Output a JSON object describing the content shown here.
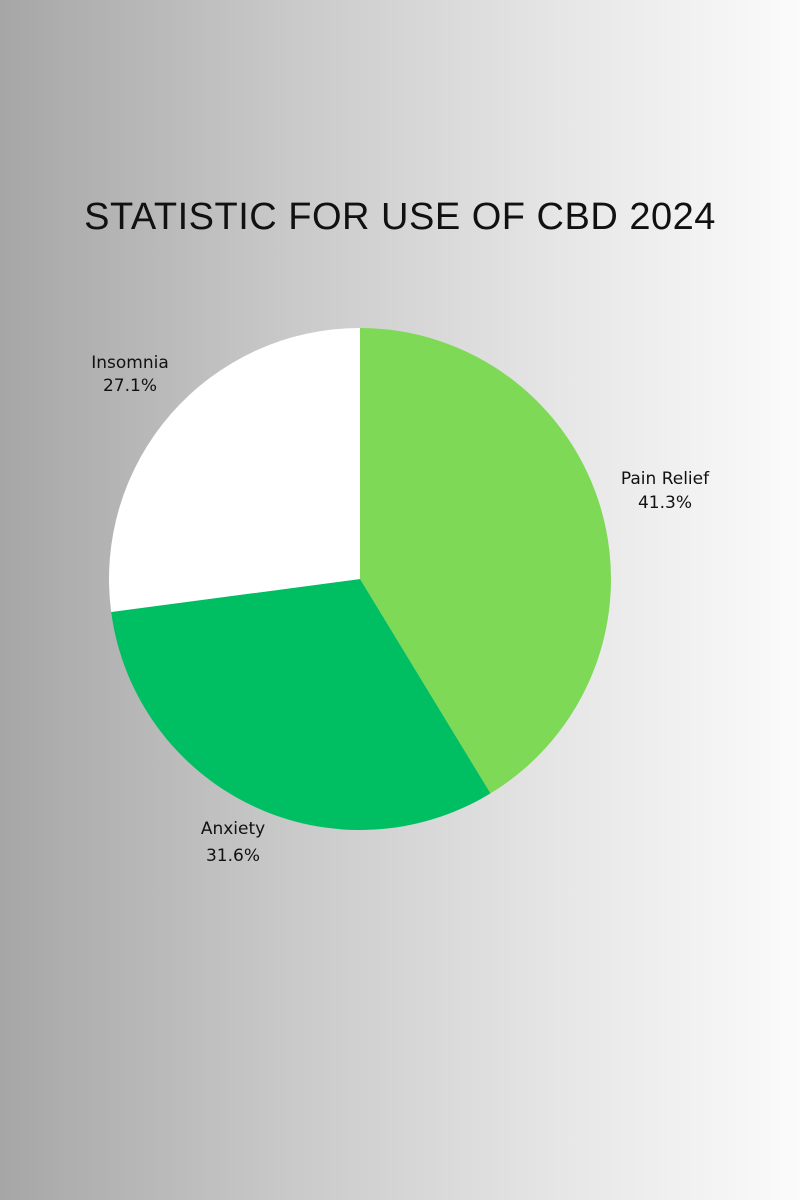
{
  "chart_data": {
    "type": "pie",
    "title": "STATISTIC FOR USE OF CBD 2024",
    "slices": [
      {
        "label": "Pain Relief",
        "value": 41.3,
        "display": "41.3%",
        "color": "#7ed957"
      },
      {
        "label": "Anxiety",
        "value": 31.6,
        "display": "31.6%",
        "color": "#00bf63"
      },
      {
        "label": "Insomnia",
        "value": 27.1,
        "display": "27.1%",
        "color": "#ffffff"
      }
    ],
    "start_angle_deg": 0,
    "direction": "clockwise"
  }
}
